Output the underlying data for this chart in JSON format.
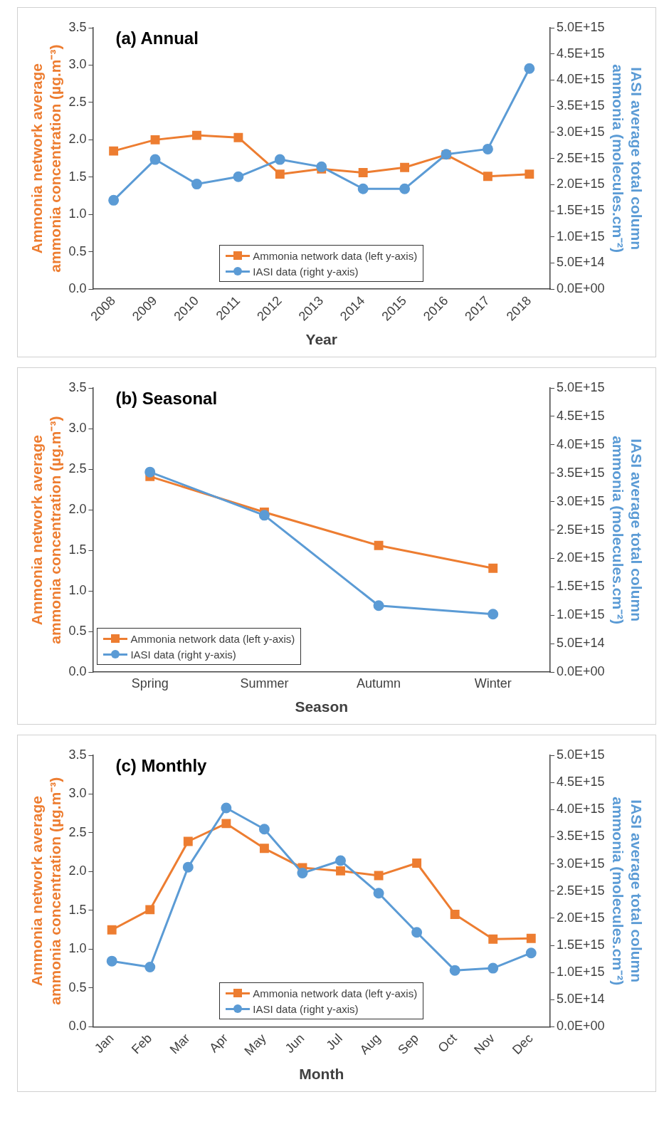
{
  "chart_data": [
    {
      "type": "line",
      "title": "(a) Annual",
      "xlabel": "Year",
      "ylabel": "Ammonia network average ammonia concentration (µg.m⁻³)",
      "y2label": "IASI average total column ammonia (molecules.cm⁻²)",
      "categories": [
        "2008",
        "2009",
        "2010",
        "2011",
        "2012",
        "2013",
        "2014",
        "2015",
        "2016",
        "2017",
        "2018"
      ],
      "series": [
        {
          "name": "Ammonia network data (left y-axis)",
          "color": "#ed7d31",
          "marker": "square",
          "values": [
            1.85,
            2.0,
            2.06,
            2.03,
            1.54,
            1.61,
            1.56,
            1.63,
            1.8,
            1.51,
            1.54
          ]
        },
        {
          "name": "IASI data (right y-axis)",
          "color": "#5b9bd5",
          "marker": "circle",
          "axis": "y2",
          "values": [
            1700000000000000.0,
            2480000000000000.0,
            2010000000000000.0,
            2150000000000000.0,
            2480000000000000.0,
            2340000000000000.0,
            1920000000000000.0,
            1920000000000000.0,
            2580000000000000.0,
            2680000000000000.0,
            4220000000000000.0
          ]
        }
      ],
      "ylim": [
        0,
        3.5
      ],
      "yticks": [
        {
          "value": 0,
          "label": "0.0"
        },
        {
          "value": 0.5,
          "label": "0.5"
        },
        {
          "value": 1,
          "label": "1.0"
        },
        {
          "value": 1.5,
          "label": "1.5"
        },
        {
          "value": 2,
          "label": "2.0"
        },
        {
          "value": 2.5,
          "label": "2.5"
        },
        {
          "value": 3,
          "label": "3.0"
        },
        {
          "value": 3.5,
          "label": "3.5"
        }
      ],
      "y2lim": [
        0,
        5000000000000000.0
      ],
      "y2ticks": [
        {
          "value": 0,
          "label": "0.0E+00"
        },
        {
          "value": 500000000000000.0,
          "label": "5.0E+14"
        },
        {
          "value": 1000000000000000.0,
          "label": "1.0E+15"
        },
        {
          "value": 1500000000000000.0,
          "label": "1.5E+15"
        },
        {
          "value": 2000000000000000.0,
          "label": "2.0E+15"
        },
        {
          "value": 2500000000000000.0,
          "label": "2.5E+15"
        },
        {
          "value": 3000000000000000.0,
          "label": "3.0E+15"
        },
        {
          "value": 3500000000000000.0,
          "label": "3.5E+15"
        },
        {
          "value": 4000000000000000.0,
          "label": "4.0E+15"
        },
        {
          "value": 4500000000000000.0,
          "label": "4.5E+15"
        },
        {
          "value": 5000000000000000.0,
          "label": "5.0E+15"
        }
      ],
      "legend": "bottom",
      "grid": false
    },
    {
      "type": "line",
      "title": "(b) Seasonal",
      "xlabel": "Season",
      "ylabel": "Ammonia network average ammonia concentration (µg.m⁻³)",
      "y2label": "IASI average total column ammonia (molecules.cm⁻²)",
      "categories": [
        "Spring",
        "Summer",
        "Autumn",
        "Winter"
      ],
      "series": [
        {
          "name": "Ammonia network data (left y-axis)",
          "color": "#ed7d31",
          "marker": "square",
          "values": [
            2.41,
            1.97,
            1.56,
            1.28
          ]
        },
        {
          "name": "IASI data (right y-axis)",
          "color": "#5b9bd5",
          "marker": "circle",
          "axis": "y2",
          "values": [
            3520000000000000.0,
            2760000000000000.0,
            1170000000000000.0,
            1020000000000000.0
          ]
        }
      ],
      "ylim": [
        0,
        3.5
      ],
      "yticks": [
        {
          "value": 0,
          "label": "0.0"
        },
        {
          "value": 0.5,
          "label": "0.5"
        },
        {
          "value": 1,
          "label": "1.0"
        },
        {
          "value": 1.5,
          "label": "1.5"
        },
        {
          "value": 2,
          "label": "2.0"
        },
        {
          "value": 2.5,
          "label": "2.5"
        },
        {
          "value": 3,
          "label": "3.0"
        },
        {
          "value": 3.5,
          "label": "3.5"
        }
      ],
      "y2lim": [
        0,
        5000000000000000.0
      ],
      "y2ticks": [
        {
          "value": 0,
          "label": "0.0E+00"
        },
        {
          "value": 500000000000000.0,
          "label": "5.0E+14"
        },
        {
          "value": 1000000000000000.0,
          "label": "1.0E+15"
        },
        {
          "value": 1500000000000000.0,
          "label": "1.5E+15"
        },
        {
          "value": 2000000000000000.0,
          "label": "2.0E+15"
        },
        {
          "value": 2500000000000000.0,
          "label": "2.5E+15"
        },
        {
          "value": 3000000000000000.0,
          "label": "3.0E+15"
        },
        {
          "value": 3500000000000000.0,
          "label": "3.5E+15"
        },
        {
          "value": 4000000000000000.0,
          "label": "4.0E+15"
        },
        {
          "value": 4500000000000000.0,
          "label": "4.5E+15"
        },
        {
          "value": 5000000000000000.0,
          "label": "5.0E+15"
        }
      ],
      "legend": "bottom left",
      "grid": false
    },
    {
      "type": "line",
      "title": "(c) Monthly",
      "xlabel": "Month",
      "ylabel": "Ammonia network average ammonia concentration (µg.m⁻³)",
      "y2label": "IASI average total column ammonia (molecules.cm⁻²)",
      "categories": [
        "Jan",
        "Feb",
        "Mar",
        "Apr",
        "May",
        "Jun",
        "Jul",
        "Aug",
        "Sep",
        "Oct",
        "Nov",
        "Dec"
      ],
      "series": [
        {
          "name": "Ammonia network data (left y-axis)",
          "color": "#ed7d31",
          "marker": "square",
          "values": [
            1.25,
            1.51,
            2.39,
            2.62,
            2.3,
            2.05,
            2.01,
            1.95,
            2.11,
            1.45,
            1.13,
            1.14
          ]
        },
        {
          "name": "IASI data (right y-axis)",
          "color": "#5b9bd5",
          "marker": "circle",
          "axis": "y2",
          "values": [
            1210000000000000.0,
            1100000000000000.0,
            2940000000000000.0,
            4030000000000000.0,
            3640000000000000.0,
            2830000000000000.0,
            3060000000000000.0,
            2460000000000000.0,
            1740000000000000.0,
            1040000000000000.0,
            1080000000000000.0,
            1360000000000000.0
          ]
        }
      ],
      "ylim": [
        0,
        3.5
      ],
      "yticks": [
        {
          "value": 0,
          "label": "0.0"
        },
        {
          "value": 0.5,
          "label": "0.5"
        },
        {
          "value": 1,
          "label": "1.0"
        },
        {
          "value": 1.5,
          "label": "1.5"
        },
        {
          "value": 2,
          "label": "2.0"
        },
        {
          "value": 2.5,
          "label": "2.5"
        },
        {
          "value": 3,
          "label": "3.0"
        },
        {
          "value": 3.5,
          "label": "3.5"
        }
      ],
      "y2lim": [
        0,
        5000000000000000.0
      ],
      "y2ticks": [
        {
          "value": 0,
          "label": "0.0E+00"
        },
        {
          "value": 500000000000000.0,
          "label": "5.0E+14"
        },
        {
          "value": 1000000000000000.0,
          "label": "1.0E+15"
        },
        {
          "value": 1500000000000000.0,
          "label": "1.5E+15"
        },
        {
          "value": 2000000000000000.0,
          "label": "2.0E+15"
        },
        {
          "value": 2500000000000000.0,
          "label": "2.5E+15"
        },
        {
          "value": 3000000000000000.0,
          "label": "3.0E+15"
        },
        {
          "value": 3500000000000000.0,
          "label": "3.5E+15"
        },
        {
          "value": 4000000000000000.0,
          "label": "4.0E+15"
        },
        {
          "value": 4500000000000000.0,
          "label": "4.5E+15"
        },
        {
          "value": 5000000000000000.0,
          "label": "5.0E+15"
        }
      ],
      "legend": "bottom",
      "grid": false
    }
  ]
}
